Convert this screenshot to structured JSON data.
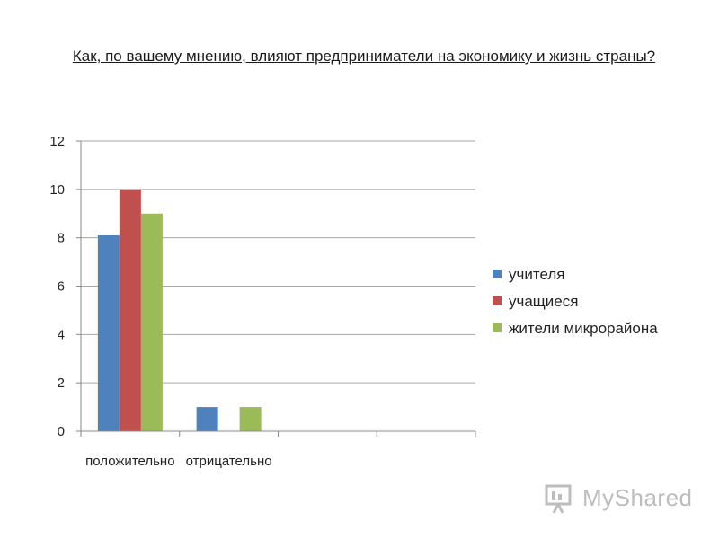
{
  "chart_data": {
    "type": "bar",
    "title": "Как, по вашему мнению, влияют предприниматели на экономику и жизнь страны?",
    "xlabel": "",
    "ylabel": "",
    "categories": [
      "положительно",
      "отрицательно",
      "",
      ""
    ],
    "series": [
      {
        "name": "учителя",
        "color": "#4F81BD",
        "values": [
          8.1,
          1,
          null,
          null
        ]
      },
      {
        "name": "учащиеся",
        "color": "#C0504D",
        "values": [
          10,
          null,
          null,
          null
        ]
      },
      {
        "name": "жители микрорайона",
        "color": "#9BBB59",
        "values": [
          9,
          1,
          null,
          null
        ]
      }
    ],
    "ylim": [
      0,
      12
    ],
    "yticks": [
      0,
      2,
      4,
      6,
      8,
      10,
      12
    ],
    "grid": true,
    "legend": "right"
  },
  "watermark": {
    "text": "MyShared",
    "icon": "presentation-board-icon"
  }
}
